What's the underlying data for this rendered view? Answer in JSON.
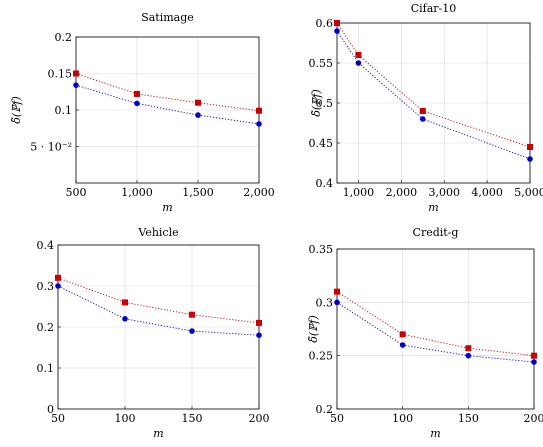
{
  "chart_data": [
    {
      "type": "line",
      "title": "Satimage",
      "xlabel": "m",
      "ylabel": "δ̃(ℙf)",
      "x": [
        500,
        1000,
        1500,
        2000
      ],
      "xlim": [
        500,
        2000
      ],
      "ylim": [
        0,
        0.2
      ],
      "xticks": [
        500,
        1000,
        1500,
        2000
      ],
      "xtick_labels": [
        "500",
        "1,000",
        "1,500",
        "2,000"
      ],
      "yticks": [
        0.05,
        0.1,
        0.15,
        0.2
      ],
      "ytick_labels": [
        "5 · 10⁻²",
        "0.1",
        "0.15",
        "0.2"
      ],
      "grid": true,
      "series": [
        {
          "values": [
            0.15,
            0.122,
            0.11,
            0.099
          ],
          "color": "#cc0000",
          "marker": "square"
        },
        {
          "values": [
            0.134,
            0.109,
            0.093,
            0.081
          ],
          "color": "#0000cc",
          "marker": "circle"
        }
      ]
    },
    {
      "type": "line",
      "title": "Cifar-10",
      "xlabel": "m",
      "ylabel": "δ̃(ℙf)",
      "x": [
        500,
        1000,
        2500,
        5000
      ],
      "xlim": [
        500,
        5000
      ],
      "ylim": [
        0.4,
        0.6
      ],
      "xticks": [
        1000,
        2000,
        3000,
        4000,
        5000
      ],
      "xtick_labels": [
        "1,000",
        "2,000",
        "3,000",
        "4,000",
        "5,000"
      ],
      "yticks": [
        0.4,
        0.45,
        0.5,
        0.55,
        0.6
      ],
      "ytick_labels": [
        "0.4",
        "0.45",
        "0.5",
        "0.55",
        "0.6"
      ],
      "grid": true,
      "series": [
        {
          "values": [
            0.6,
            0.56,
            0.49,
            0.445
          ],
          "color": "#cc0000",
          "marker": "square"
        },
        {
          "values": [
            0.59,
            0.55,
            0.48,
            0.43
          ],
          "color": "#0000cc",
          "marker": "circle"
        }
      ]
    },
    {
      "type": "line",
      "title": "Vehicle",
      "xlabel": "m",
      "ylabel": "",
      "x": [
        50,
        100,
        150,
        200
      ],
      "xlim": [
        50,
        200
      ],
      "ylim": [
        0,
        0.4
      ],
      "xticks": [
        50,
        100,
        150,
        200
      ],
      "xtick_labels": [
        "50",
        "100",
        "150",
        "200"
      ],
      "yticks": [
        0,
        0.1,
        0.2,
        0.3,
        0.4
      ],
      "ytick_labels": [
        "0",
        "0.1",
        "0.2",
        "0.3",
        "0.4"
      ],
      "grid": true,
      "series": [
        {
          "values": [
            0.32,
            0.26,
            0.23,
            0.21
          ],
          "color": "#cc0000",
          "marker": "square"
        },
        {
          "values": [
            0.3,
            0.22,
            0.19,
            0.18
          ],
          "color": "#0000cc",
          "marker": "circle"
        }
      ]
    },
    {
      "type": "line",
      "title": "Credit-g",
      "xlabel": "m",
      "ylabel": "δ̃(ℙf)",
      "x": [
        50,
        100,
        150,
        200
      ],
      "xlim": [
        50,
        200
      ],
      "ylim": [
        0.2,
        0.35
      ],
      "xticks": [
        50,
        100,
        150,
        200
      ],
      "xtick_labels": [
        "50",
        "100",
        "150",
        "200"
      ],
      "yticks": [
        0.2,
        0.25,
        0.3,
        0.35
      ],
      "ytick_labels": [
        "0.2",
        "0.25",
        "0.3",
        "0.35"
      ],
      "grid": true,
      "series": [
        {
          "values": [
            0.31,
            0.27,
            0.257,
            0.25
          ],
          "color": "#cc0000",
          "marker": "square"
        },
        {
          "values": [
            0.3,
            0.26,
            0.25,
            0.244
          ],
          "color": "#0000cc",
          "marker": "circle"
        }
      ]
    }
  ]
}
